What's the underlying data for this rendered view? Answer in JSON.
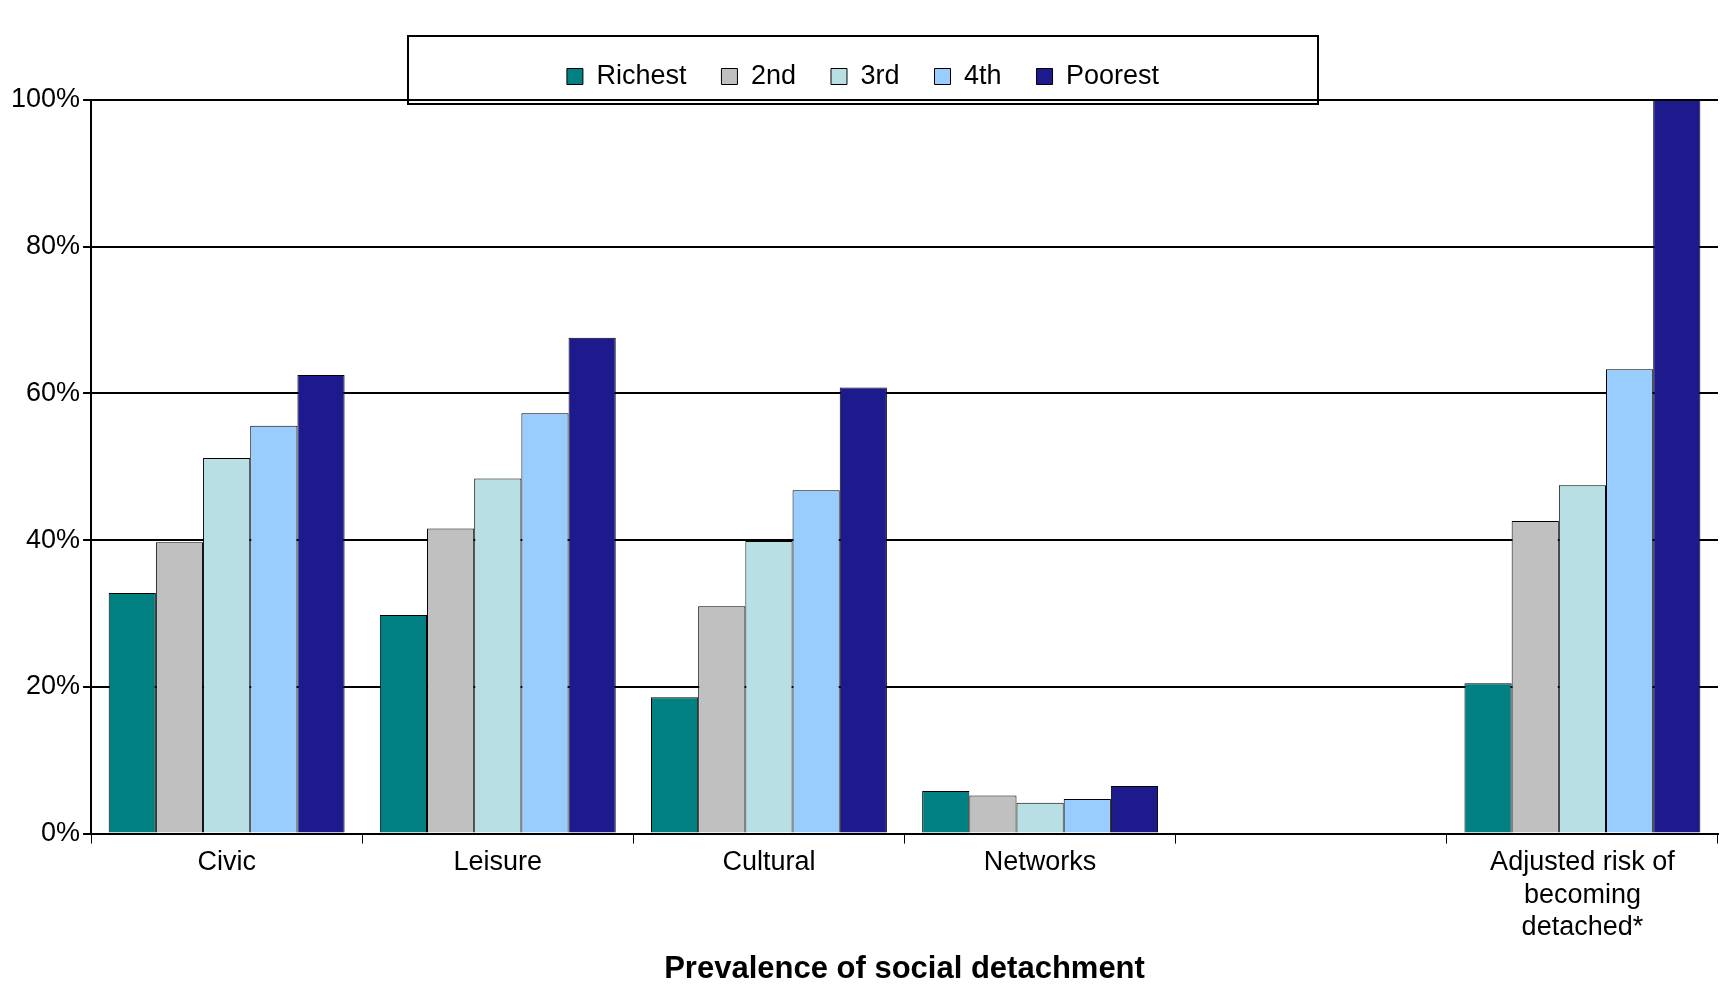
{
  "chart_data": {
    "type": "bar",
    "xlabel": "Prevalence of social detachment",
    "categories": [
      "Civic",
      "Leisure",
      "Cultural",
      "Networks",
      null,
      "Adjusted risk of becoming detached*"
    ],
    "series": [
      {
        "name": "Richest",
        "color": "#008080",
        "values": [
          32.8,
          29.8,
          18.6,
          5.8,
          null,
          20.5
        ]
      },
      {
        "name": "2nd",
        "color": "#c0c0c0",
        "values": [
          39.7,
          41.6,
          31.0,
          5.2,
          null,
          42.6
        ]
      },
      {
        "name": "3rd",
        "color": "#b8dfe3",
        "values": [
          51.2,
          48.4,
          39.9,
          4.2,
          null,
          47.5
        ]
      },
      {
        "name": "4th",
        "color": "#99ccff",
        "values": [
          55.6,
          57.3,
          46.8,
          4.7,
          null,
          63.3
        ]
      },
      {
        "name": "Poorest",
        "color": "#1c1a8c",
        "values": [
          62.5,
          67.6,
          60.8,
          6.5,
          null,
          100
        ]
      }
    ],
    "ylim": [
      0,
      100
    ],
    "yticks": [
      {
        "value": 0,
        "label": "0%"
      },
      {
        "value": 20,
        "label": "20%"
      },
      {
        "value": 40,
        "label": "40%"
      },
      {
        "value": 60,
        "label": "60%"
      },
      {
        "value": 80,
        "label": "80%"
      },
      {
        "value": 100,
        "label": "100%"
      }
    ],
    "grid": "y",
    "legend": "top"
  }
}
